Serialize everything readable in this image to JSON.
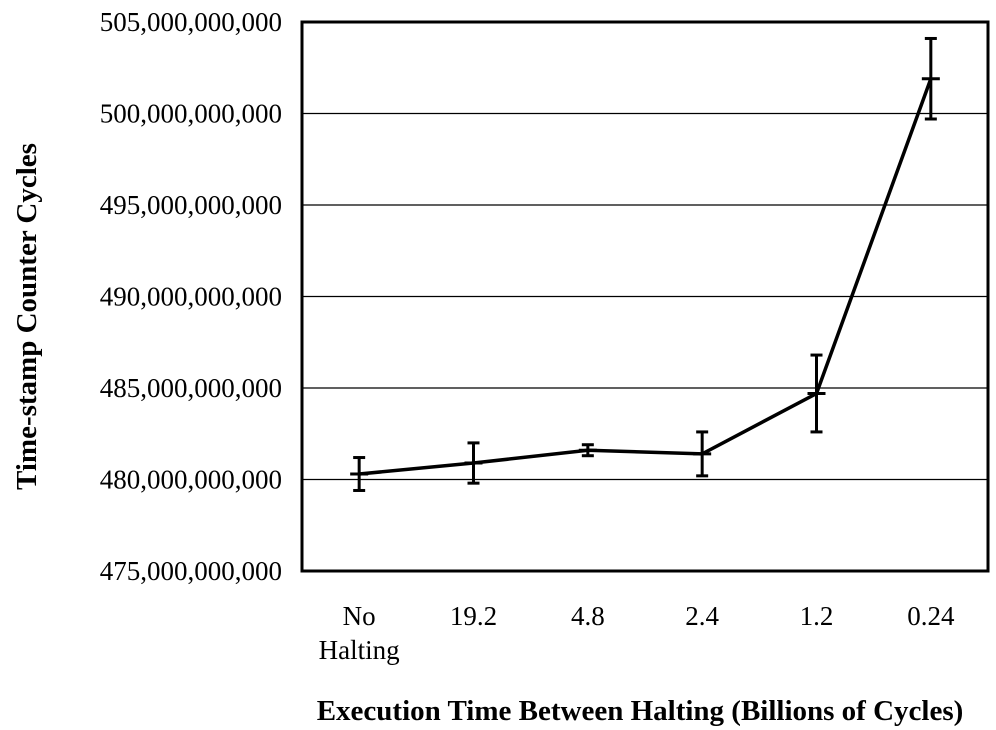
{
  "chart_data": {
    "type": "line",
    "title": "",
    "xlabel": "Execution Time Between Halting (Billions of Cycles)",
    "ylabel": "Time-stamp Counter Cycles",
    "categories": [
      [
        "No",
        "Halting"
      ],
      [
        "19.2"
      ],
      [
        "4.8"
      ],
      [
        "2.4"
      ],
      [
        "1.2"
      ],
      [
        "0.24"
      ]
    ],
    "ylim": [
      475000000000,
      505000000000
    ],
    "yticks": [
      475000000000,
      480000000000,
      485000000000,
      490000000000,
      495000000000,
      500000000000,
      505000000000
    ],
    "ytick_labels": [
      "475,000,000,000",
      "480,000,000,000",
      "485,000,000,000",
      "490,000,000,000",
      "495,000,000,000",
      "500,000,000,000",
      "505,000,000,000"
    ],
    "grid": true,
    "legend": "none",
    "series": [
      {
        "values": [
          480300000000,
          480900000000,
          481600000000,
          481400000000,
          484700000000,
          501900000000
        ],
        "error_low": [
          479400000000,
          479800000000,
          481300000000,
          480200000000,
          482600000000,
          499700000000
        ],
        "error_high": [
          481200000000,
          482000000000,
          481900000000,
          482600000000,
          486800000000,
          504100000000
        ],
        "color": "#000000"
      }
    ]
  }
}
